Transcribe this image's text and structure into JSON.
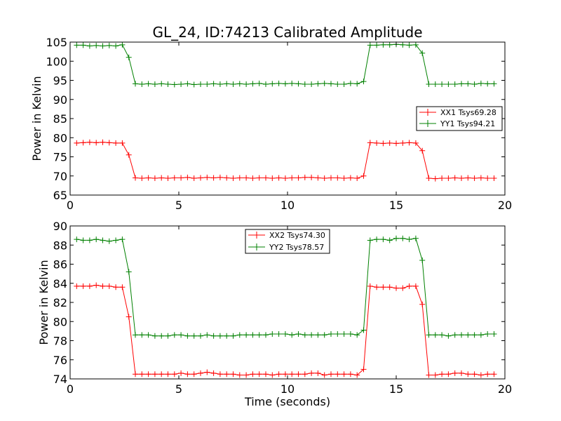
{
  "chart_data": [
    {
      "type": "line",
      "title": "GL_24, ID:74213 Calibrated Amplitude",
      "xlabel": "",
      "ylabel": "Power in Kelvin",
      "xlim": [
        0,
        20
      ],
      "ylim": [
        65,
        105
      ],
      "xticks": [
        0,
        5,
        10,
        15,
        20
      ],
      "yticks": [
        65,
        70,
        75,
        80,
        85,
        90,
        95,
        100,
        105
      ],
      "legend_position": "center-right",
      "series": [
        {
          "name": "XX1 Tsys69.28",
          "color": "#ff0000",
          "x": [
            0.3,
            0.6,
            0.9,
            1.2,
            1.5,
            1.8,
            2.1,
            2.4,
            2.7,
            3.0,
            3.3,
            3.6,
            3.9,
            4.2,
            4.5,
            4.8,
            5.1,
            5.4,
            5.7,
            6.0,
            6.3,
            6.6,
            6.9,
            7.2,
            7.5,
            7.8,
            8.1,
            8.4,
            8.7,
            9.0,
            9.3,
            9.6,
            9.9,
            10.2,
            10.5,
            10.8,
            11.1,
            11.4,
            11.7,
            12.0,
            12.3,
            12.6,
            12.9,
            13.2,
            13.5,
            13.8,
            14.1,
            14.4,
            14.7,
            15.0,
            15.3,
            15.6,
            15.9,
            16.2,
            16.5,
            16.8,
            17.1,
            17.4,
            17.7,
            18.0,
            18.3,
            18.6,
            18.9,
            19.2,
            19.5
          ],
          "y": [
            78.6,
            78.7,
            78.8,
            78.7,
            78.8,
            78.7,
            78.6,
            78.6,
            75.5,
            69.5,
            69.4,
            69.5,
            69.4,
            69.5,
            69.4,
            69.5,
            69.5,
            69.6,
            69.4,
            69.5,
            69.6,
            69.5,
            69.6,
            69.5,
            69.4,
            69.5,
            69.5,
            69.4,
            69.5,
            69.5,
            69.4,
            69.5,
            69.4,
            69.5,
            69.5,
            69.6,
            69.6,
            69.5,
            69.4,
            69.5,
            69.5,
            69.4,
            69.5,
            69.4,
            70.0,
            78.7,
            78.6,
            78.5,
            78.6,
            78.5,
            78.6,
            78.7,
            78.6,
            76.6,
            69.4,
            69.3,
            69.4,
            69.4,
            69.5,
            69.4,
            69.5,
            69.4,
            69.5,
            69.4,
            69.4
          ]
        },
        {
          "name": "YY1 Tsys94.21",
          "color": "#008000",
          "x": [
            0.3,
            0.6,
            0.9,
            1.2,
            1.5,
            1.8,
            2.1,
            2.4,
            2.7,
            3.0,
            3.3,
            3.6,
            3.9,
            4.2,
            4.5,
            4.8,
            5.1,
            5.4,
            5.7,
            6.0,
            6.3,
            6.6,
            6.9,
            7.2,
            7.5,
            7.8,
            8.1,
            8.4,
            8.7,
            9.0,
            9.3,
            9.6,
            9.9,
            10.2,
            10.5,
            10.8,
            11.1,
            11.4,
            11.7,
            12.0,
            12.3,
            12.6,
            12.9,
            13.2,
            13.5,
            13.8,
            14.1,
            14.4,
            14.7,
            15.0,
            15.3,
            15.6,
            15.9,
            16.2,
            16.5,
            16.8,
            17.1,
            17.4,
            17.7,
            18.0,
            18.3,
            18.6,
            18.9,
            19.2,
            19.5
          ],
          "y": [
            104.2,
            104.2,
            104.0,
            104.1,
            104.0,
            104.1,
            104.0,
            104.3,
            101.0,
            94.1,
            94.0,
            94.1,
            94.0,
            94.1,
            94.0,
            93.9,
            94.0,
            94.1,
            93.9,
            94.0,
            94.0,
            94.1,
            94.0,
            94.1,
            94.0,
            94.1,
            94.0,
            94.1,
            94.2,
            94.0,
            94.1,
            94.2,
            94.1,
            94.2,
            94.1,
            94.0,
            94.0,
            94.1,
            94.2,
            94.1,
            94.0,
            94.0,
            94.2,
            94.1,
            94.7,
            104.2,
            104.2,
            104.3,
            104.3,
            104.4,
            104.3,
            104.2,
            104.3,
            102.1,
            94.0,
            94.0,
            94.0,
            94.0,
            94.0,
            94.1,
            94.1,
            94.0,
            94.2,
            94.1,
            94.1
          ]
        }
      ]
    },
    {
      "type": "line",
      "title": "",
      "xlabel": "Time (seconds)",
      "ylabel": "Power in Kelvin",
      "xlim": [
        0,
        20
      ],
      "ylim": [
        74,
        90
      ],
      "xticks": [
        0,
        5,
        10,
        15,
        20
      ],
      "yticks": [
        74,
        76,
        78,
        80,
        82,
        84,
        86,
        88,
        90
      ],
      "legend_position": "top-center",
      "series": [
        {
          "name": "XX2 Tsys74.30",
          "color": "#ff0000",
          "x": [
            0.3,
            0.6,
            0.9,
            1.2,
            1.5,
            1.8,
            2.1,
            2.4,
            2.7,
            3.0,
            3.3,
            3.6,
            3.9,
            4.2,
            4.5,
            4.8,
            5.1,
            5.4,
            5.7,
            6.0,
            6.3,
            6.6,
            6.9,
            7.2,
            7.5,
            7.8,
            8.1,
            8.4,
            8.7,
            9.0,
            9.3,
            9.6,
            9.9,
            10.2,
            10.5,
            10.8,
            11.1,
            11.4,
            11.7,
            12.0,
            12.3,
            12.6,
            12.9,
            13.2,
            13.5,
            13.8,
            14.1,
            14.4,
            14.7,
            15.0,
            15.3,
            15.6,
            15.9,
            16.2,
            16.5,
            16.8,
            17.1,
            17.4,
            17.7,
            18.0,
            18.3,
            18.6,
            18.9,
            19.2,
            19.5
          ],
          "y": [
            83.7,
            83.7,
            83.7,
            83.8,
            83.7,
            83.7,
            83.6,
            83.6,
            80.5,
            74.5,
            74.5,
            74.5,
            74.5,
            74.5,
            74.5,
            74.5,
            74.6,
            74.5,
            74.5,
            74.6,
            74.7,
            74.6,
            74.5,
            74.5,
            74.5,
            74.4,
            74.4,
            74.5,
            74.5,
            74.5,
            74.4,
            74.5,
            74.5,
            74.5,
            74.5,
            74.5,
            74.6,
            74.6,
            74.4,
            74.5,
            74.5,
            74.5,
            74.5,
            74.4,
            75.0,
            83.7,
            83.6,
            83.6,
            83.6,
            83.5,
            83.5,
            83.7,
            83.7,
            81.8,
            74.4,
            74.4,
            74.5,
            74.5,
            74.6,
            74.6,
            74.5,
            74.5,
            74.4,
            74.5,
            74.5
          ]
        },
        {
          "name": "YY2 Tsys78.57",
          "color": "#008000",
          "x": [
            0.3,
            0.6,
            0.9,
            1.2,
            1.5,
            1.8,
            2.1,
            2.4,
            2.7,
            3.0,
            3.3,
            3.6,
            3.9,
            4.2,
            4.5,
            4.8,
            5.1,
            5.4,
            5.7,
            6.0,
            6.3,
            6.6,
            6.9,
            7.2,
            7.5,
            7.8,
            8.1,
            8.4,
            8.7,
            9.0,
            9.3,
            9.6,
            9.9,
            10.2,
            10.5,
            10.8,
            11.1,
            11.4,
            11.7,
            12.0,
            12.3,
            12.6,
            12.9,
            13.2,
            13.5,
            13.8,
            14.1,
            14.4,
            14.7,
            15.0,
            15.3,
            15.6,
            15.9,
            16.2,
            16.5,
            16.8,
            17.1,
            17.4,
            17.7,
            18.0,
            18.3,
            18.6,
            18.9,
            19.2,
            19.5
          ],
          "y": [
            88.6,
            88.5,
            88.5,
            88.6,
            88.5,
            88.4,
            88.5,
            88.6,
            85.2,
            78.6,
            78.6,
            78.6,
            78.5,
            78.5,
            78.5,
            78.6,
            78.6,
            78.5,
            78.5,
            78.5,
            78.6,
            78.5,
            78.5,
            78.5,
            78.5,
            78.6,
            78.6,
            78.6,
            78.6,
            78.6,
            78.7,
            78.7,
            78.7,
            78.6,
            78.7,
            78.6,
            78.6,
            78.6,
            78.6,
            78.7,
            78.7,
            78.7,
            78.7,
            78.6,
            79.1,
            88.5,
            88.6,
            88.6,
            88.5,
            88.7,
            88.7,
            88.6,
            88.7,
            86.4,
            78.6,
            78.6,
            78.6,
            78.5,
            78.6,
            78.6,
            78.6,
            78.6,
            78.6,
            78.7,
            78.7
          ]
        }
      ]
    }
  ]
}
